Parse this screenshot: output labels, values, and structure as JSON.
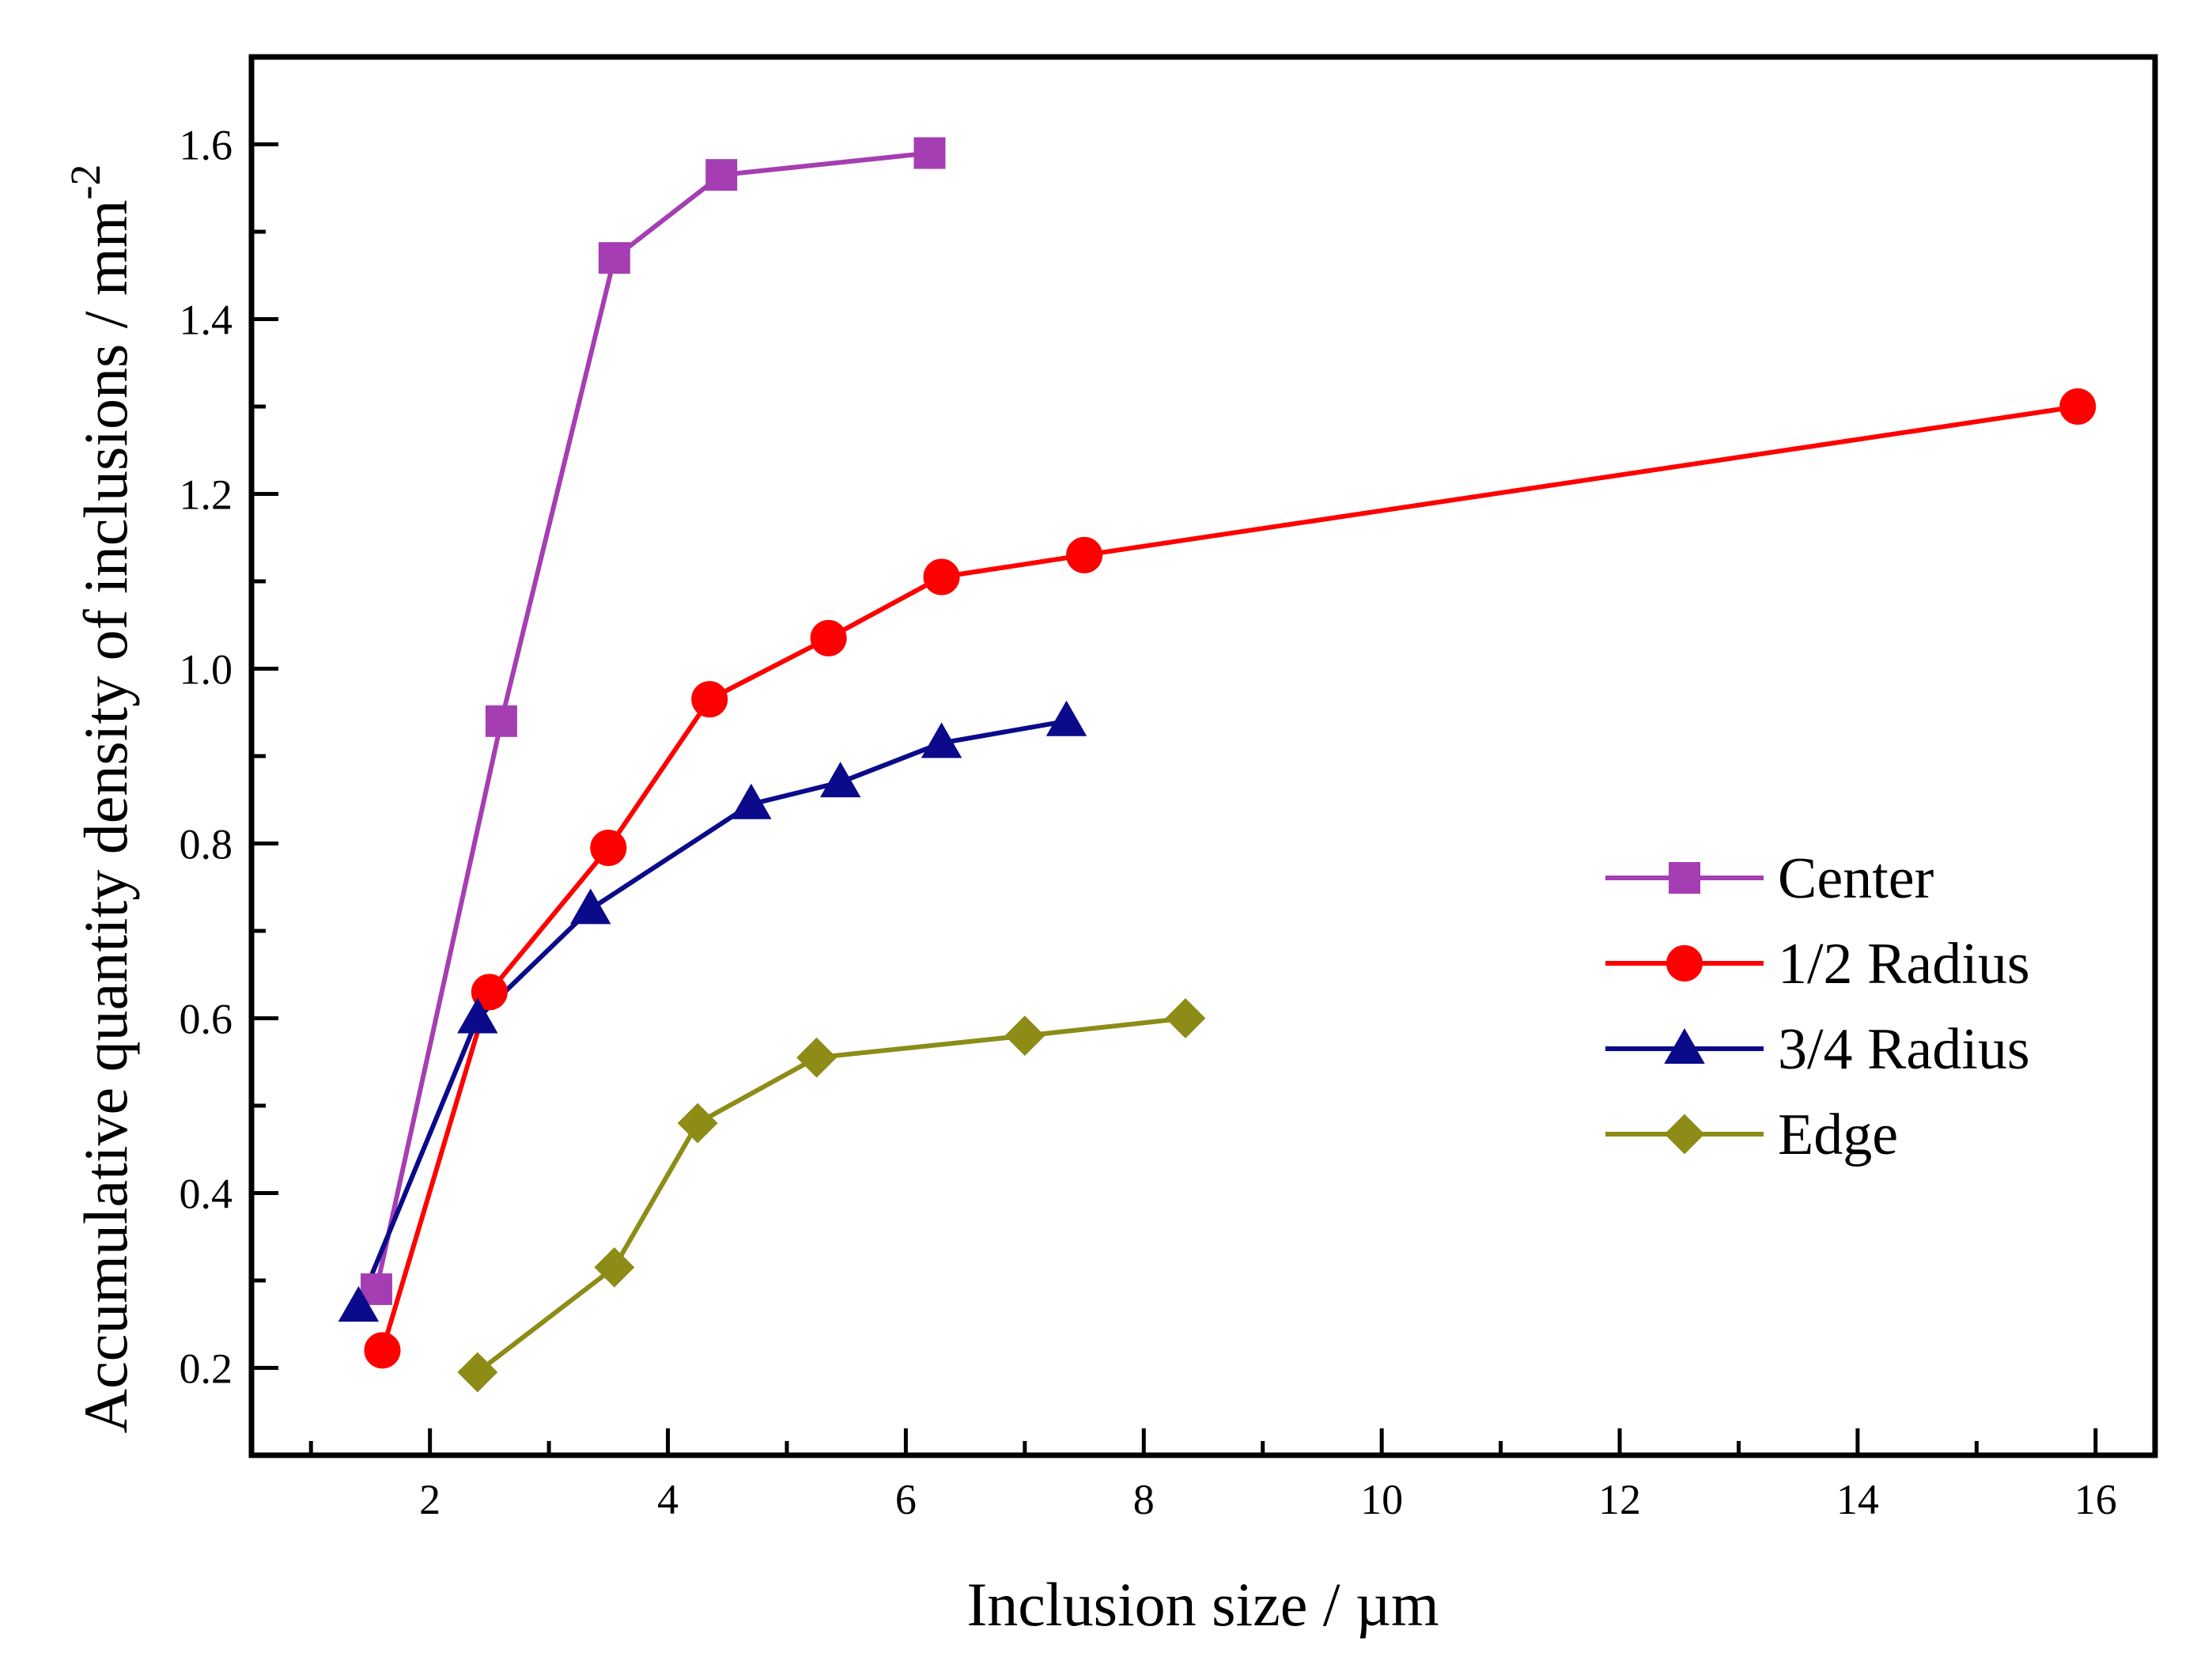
{
  "chart_data": {
    "type": "line",
    "title": "",
    "xlabel": "Inclusion size / µm",
    "ylabel": "Accumulative quantity density of inclusions / mm",
    "ylabel_superscript": "-2",
    "xlim": [
      0.5,
      16.5
    ],
    "ylim": [
      0.1,
      1.7
    ],
    "x_ticks": [
      "2",
      "4",
      "6",
      "8",
      "10",
      "12",
      "14",
      "16"
    ],
    "y_ticks": [
      "0.2",
      "0.4",
      "0.6",
      "0.8",
      "1.0",
      "1.2",
      "1.4",
      "1.6"
    ],
    "legend_position": "center-right",
    "series": [
      {
        "name": "Center",
        "color": "#A53EB2",
        "marker": "square",
        "x": [
          1.55,
          2.6,
          3.55,
          4.45,
          6.2
        ],
        "y": [
          0.29,
          0.94,
          1.47,
          1.565,
          1.59
        ]
      },
      {
        "name": "1/2 Radius",
        "color": "#FF0000",
        "marker": "circle",
        "x": [
          1.6,
          2.5,
          3.5,
          4.35,
          5.35,
          6.3,
          7.5,
          15.85
        ],
        "y": [
          0.22,
          0.63,
          0.795,
          0.965,
          1.035,
          1.105,
          1.13,
          1.3
        ]
      },
      {
        "name": "3/4 Radius",
        "color": "#0A0A8A",
        "marker": "triangle",
        "x": [
          1.4,
          2.4,
          3.35,
          4.7,
          5.45,
          6.3,
          7.35
        ],
        "y": [
          0.27,
          0.6,
          0.725,
          0.845,
          0.87,
          0.915,
          0.94
        ]
      },
      {
        "name": "Edge",
        "color": "#8C8C17",
        "marker": "diamond",
        "x": [
          2.4,
          3.55,
          4.25,
          5.25,
          7.0,
          8.35
        ],
        "y": [
          0.195,
          0.315,
          0.48,
          0.555,
          0.58,
          0.6
        ]
      }
    ]
  }
}
